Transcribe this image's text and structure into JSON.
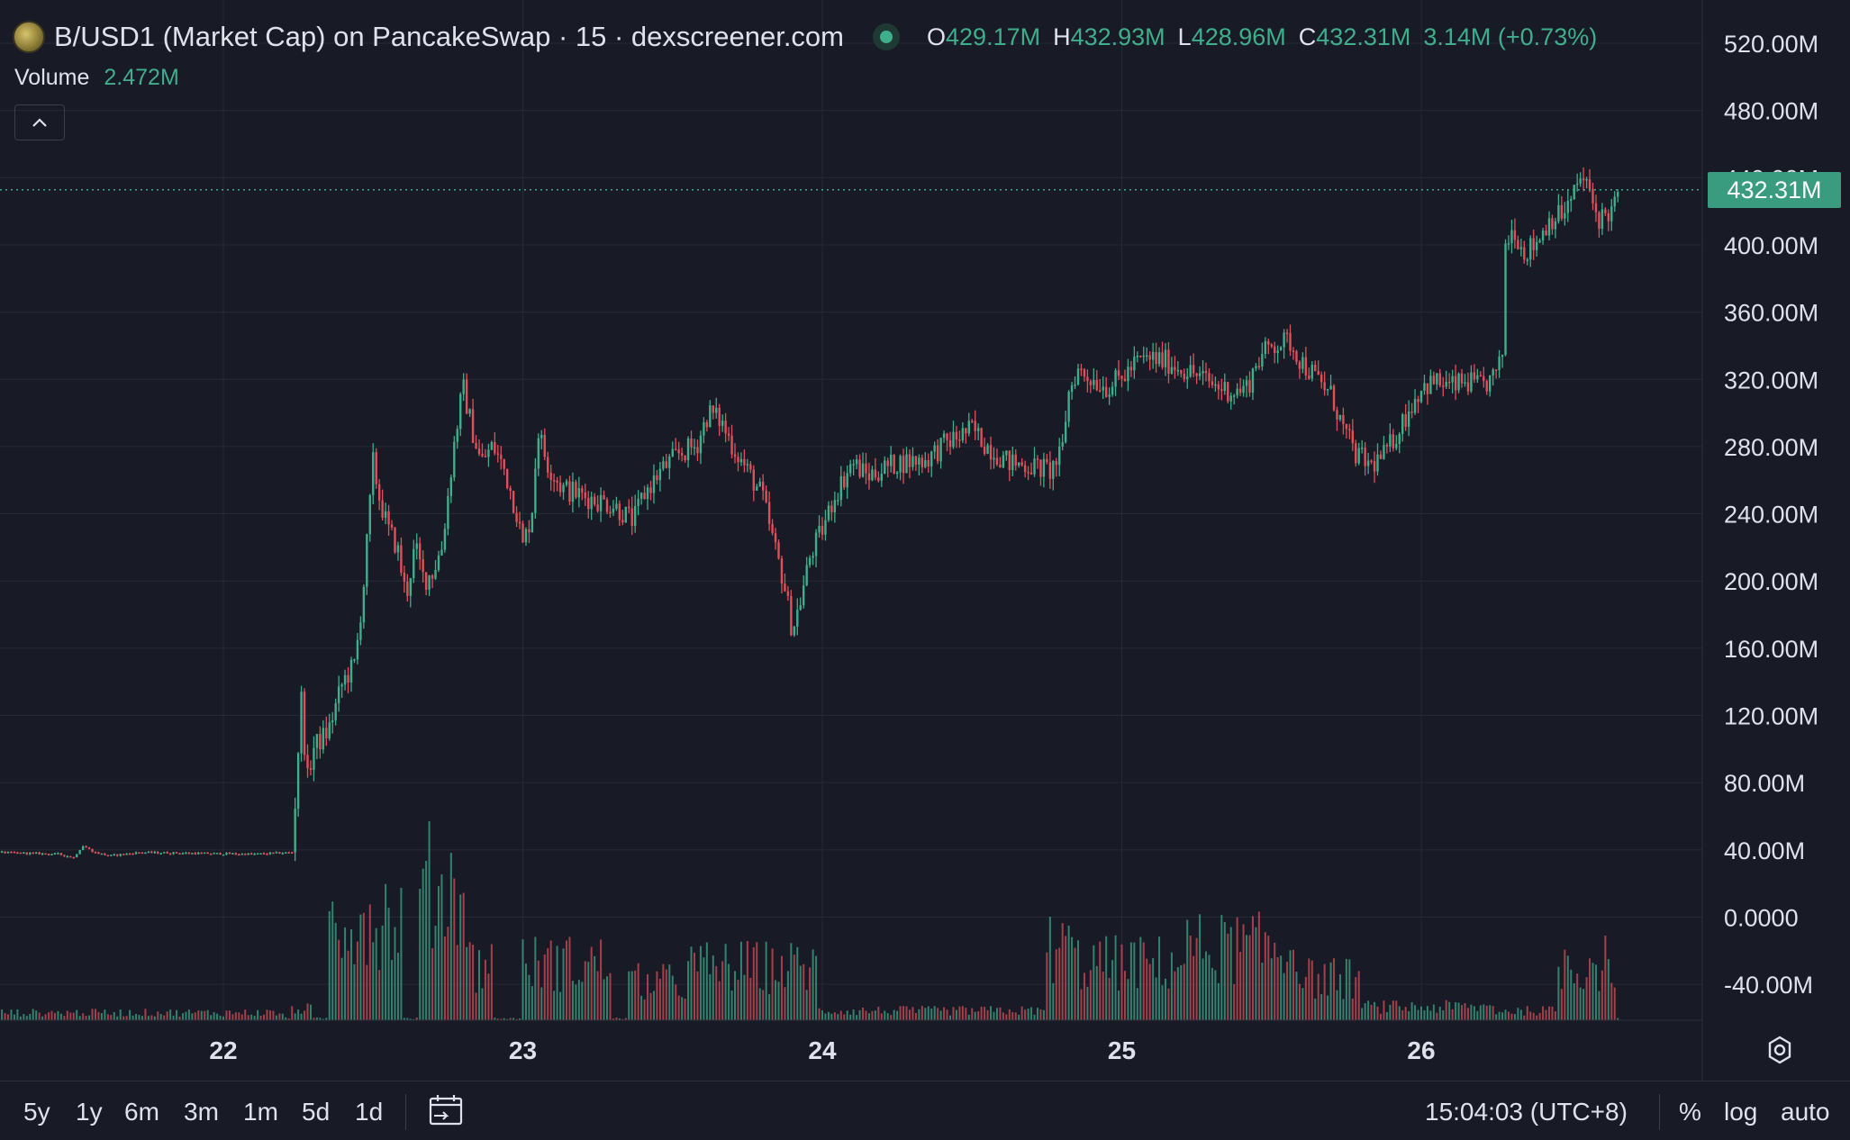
{
  "legend": {
    "title": "B/USD1 (Market Cap) on PancakeSwap · 15 · dexscreener.com",
    "open_label": "O",
    "open": "429.17M",
    "high_label": "H",
    "high": "432.93M",
    "low_label": "L",
    "low": "428.96M",
    "close_label": "C",
    "close": "432.31M",
    "change": "3.14M (+0.73%)"
  },
  "volume": {
    "label": "Volume",
    "value": "2.472M"
  },
  "current_price_tag": "432.31M",
  "colors": {
    "up": "#3fae8b",
    "down": "#e0505a",
    "background": "#181b26",
    "grid": "#262a36"
  },
  "chart_data": {
    "type": "candlestick",
    "y_ticks": [
      "520.00M",
      "480.00M",
      "440.00M",
      "400.00M",
      "360.00M",
      "320.00M",
      "280.00M",
      "240.00M",
      "200.00M",
      "160.00M",
      "120.00M",
      "80.00M",
      "40.00M",
      "0.0000",
      "-40.00M"
    ],
    "x_ticks": [
      "22",
      "23",
      "24",
      "25",
      "26"
    ],
    "current_price": 432.31,
    "price_path": [
      [
        21.25,
        38
      ],
      [
        21.45,
        37
      ],
      [
        21.5,
        35
      ],
      [
        21.53,
        42
      ],
      [
        21.57,
        38
      ],
      [
        21.62,
        36
      ],
      [
        21.72,
        38
      ],
      [
        22.1,
        37
      ],
      [
        22.23,
        38
      ],
      [
        22.26,
        130
      ],
      [
        22.28,
        80
      ],
      [
        22.3,
        100
      ],
      [
        22.35,
        110
      ],
      [
        22.4,
        140
      ],
      [
        22.44,
        150
      ],
      [
        22.47,
        200
      ],
      [
        22.5,
        270
      ],
      [
        22.52,
        250
      ],
      [
        22.55,
        230
      ],
      [
        22.58,
        220
      ],
      [
        22.61,
        190
      ],
      [
        22.64,
        220
      ],
      [
        22.67,
        200
      ],
      [
        22.7,
        205
      ],
      [
        22.73,
        220
      ],
      [
        22.77,
        280
      ],
      [
        22.8,
        315
      ],
      [
        22.83,
        290
      ],
      [
        22.86,
        270
      ],
      [
        22.9,
        280
      ],
      [
        22.94,
        265
      ],
      [
        22.98,
        240
      ],
      [
        23.0,
        220
      ],
      [
        23.03,
        240
      ],
      [
        23.05,
        290
      ],
      [
        23.08,
        270
      ],
      [
        23.13,
        255
      ],
      [
        23.2,
        250
      ],
      [
        23.3,
        245
      ],
      [
        23.37,
        235
      ],
      [
        23.4,
        250
      ],
      [
        23.46,
        265
      ],
      [
        23.52,
        275
      ],
      [
        23.58,
        280
      ],
      [
        23.62,
        300
      ],
      [
        23.66,
        295
      ],
      [
        23.7,
        280
      ],
      [
        23.75,
        265
      ],
      [
        23.8,
        250
      ],
      [
        23.84,
        220
      ],
      [
        23.87,
        200
      ],
      [
        23.9,
        170
      ],
      [
        23.93,
        190
      ],
      [
        23.96,
        215
      ],
      [
        24.0,
        230
      ],
      [
        24.04,
        250
      ],
      [
        24.1,
        270
      ],
      [
        24.15,
        262
      ],
      [
        24.25,
        270
      ],
      [
        24.35,
        272
      ],
      [
        24.4,
        280
      ],
      [
        24.45,
        285
      ],
      [
        24.5,
        290
      ],
      [
        24.55,
        280
      ],
      [
        24.62,
        270
      ],
      [
        24.7,
        268
      ],
      [
        24.76,
        265
      ],
      [
        24.8,
        275
      ],
      [
        24.82,
        310
      ],
      [
        24.85,
        325
      ],
      [
        24.9,
        320
      ],
      [
        24.95,
        315
      ],
      [
        25.0,
        320
      ],
      [
        25.05,
        330
      ],
      [
        25.1,
        332
      ],
      [
        25.15,
        330
      ],
      [
        25.25,
        322
      ],
      [
        25.32,
        315
      ],
      [
        25.38,
        312
      ],
      [
        25.42,
        315
      ],
      [
        25.45,
        330
      ],
      [
        25.5,
        340
      ],
      [
        25.56,
        342
      ],
      [
        25.6,
        330
      ],
      [
        25.65,
        320
      ],
      [
        25.7,
        310
      ],
      [
        25.74,
        290
      ],
      [
        25.78,
        275
      ],
      [
        25.83,
        268
      ],
      [
        25.88,
        275
      ],
      [
        25.94,
        295
      ],
      [
        26.0,
        315
      ],
      [
        26.05,
        318
      ],
      [
        26.1,
        315
      ],
      [
        26.15,
        318
      ],
      [
        26.2,
        315
      ],
      [
        26.24,
        320
      ],
      [
        26.27,
        330
      ],
      [
        26.28,
        400
      ],
      [
        26.31,
        410
      ],
      [
        26.34,
        395
      ],
      [
        26.38,
        400
      ],
      [
        26.43,
        415
      ],
      [
        26.47,
        418
      ],
      [
        26.5,
        425
      ],
      [
        26.53,
        440
      ],
      [
        26.56,
        432
      ],
      [
        26.59,
        415
      ],
      [
        26.62,
        418
      ],
      [
        26.64,
        420
      ],
      [
        26.66,
        432
      ]
    ],
    "volume_bursts": [
      [
        21.0,
        22.2,
        0.04
      ],
      [
        22.22,
        22.3,
        0.06
      ],
      [
        22.35,
        22.6,
        0.55
      ],
      [
        22.65,
        22.82,
        0.7
      ],
      [
        22.82,
        22.9,
        0.3
      ],
      [
        23.0,
        23.3,
        0.3
      ],
      [
        23.35,
        23.55,
        0.2
      ],
      [
        23.55,
        23.98,
        0.28
      ],
      [
        23.98,
        24.75,
        0.05
      ],
      [
        24.75,
        24.85,
        0.38
      ],
      [
        24.85,
        25.2,
        0.3
      ],
      [
        25.2,
        25.6,
        0.38
      ],
      [
        25.6,
        25.8,
        0.22
      ],
      [
        25.8,
        26.25,
        0.07
      ],
      [
        26.25,
        26.45,
        0.05
      ],
      [
        26.45,
        26.65,
        0.3
      ]
    ]
  },
  "ranges": [
    "5y",
    "1y",
    "6m",
    "3m",
    "1m",
    "5d",
    "1d"
  ],
  "bottom_right": {
    "time": "15:04:03 (UTC+8)",
    "percent": "%",
    "log": "log",
    "auto": "auto"
  },
  "icons": {
    "settings": "gear-icon",
    "date_range": "calendar-icon",
    "collapse": "chevron-up-icon",
    "coin": "coin-icon",
    "live": "live-dot-icon"
  }
}
